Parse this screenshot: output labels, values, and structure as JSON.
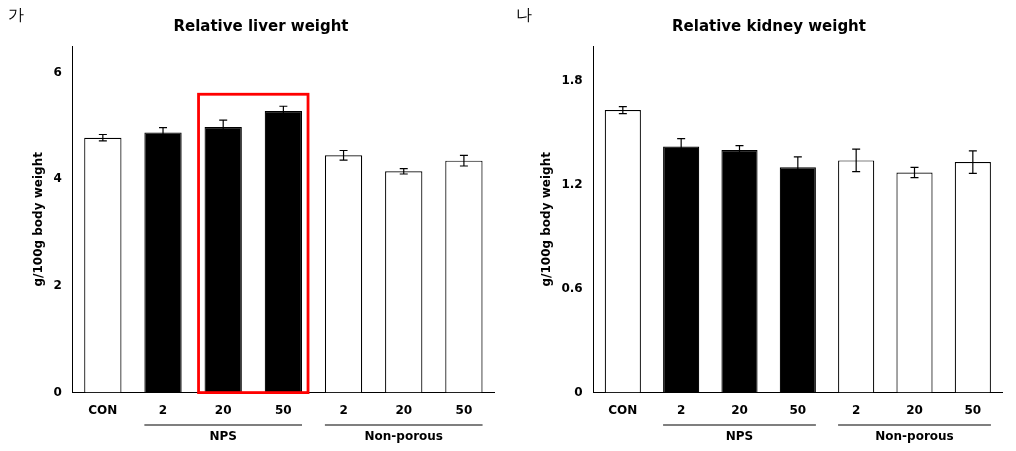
{
  "chart_data": [
    {
      "type": "bar",
      "title": "Relative liver weight",
      "panel_label": "가",
      "ylabel": "g/100g body weight",
      "categories": [
        "CON",
        "2",
        "20",
        "50",
        "2",
        "20",
        "50"
      ],
      "category_groups": [
        null,
        "NPS",
        "NPS",
        "NPS",
        "Non-porous",
        "Non-porous",
        "Non-porous"
      ],
      "values": [
        4.78,
        4.88,
        4.98,
        5.28,
        4.45,
        4.15,
        4.35
      ],
      "errors": [
        0.06,
        0.09,
        0.13,
        0.09,
        0.09,
        0.05,
        0.1
      ],
      "colors": [
        "#ffffff",
        "#000000",
        "#000000",
        "#000000",
        "#ffffff",
        "#ffffff",
        "#ffffff"
      ],
      "edge_color": "#000000",
      "ylim": [
        0,
        6.5
      ],
      "yticks": [
        0,
        2,
        4,
        6
      ],
      "grid": false,
      "highlight": [
        false,
        false,
        true,
        true,
        false,
        false,
        false
      ],
      "highlight_color": "#ff0000"
    },
    {
      "type": "bar",
      "title": "Relative kidney weight",
      "panel_label": "나",
      "ylabel": "g/100g body weight",
      "categories": [
        "CON",
        "2",
        "20",
        "50",
        "2",
        "20",
        "50"
      ],
      "category_groups": [
        null,
        "NPS",
        "NPS",
        "NPS",
        "Non-porous",
        "Non-porous",
        "Non-porous"
      ],
      "values": [
        1.63,
        1.42,
        1.4,
        1.3,
        1.34,
        1.27,
        1.33
      ],
      "errors": [
        0.02,
        0.045,
        0.025,
        0.06,
        0.065,
        0.03,
        0.065
      ],
      "colors": [
        "#ffffff",
        "#000000",
        "#000000",
        "#000000",
        "#ffffff",
        "#ffffff",
        "#ffffff"
      ],
      "edge_color": "#000000",
      "ylim": [
        0,
        2.0
      ],
      "yticks": [
        0,
        0.6,
        1.2,
        1.8
      ],
      "grid": false
    }
  ]
}
